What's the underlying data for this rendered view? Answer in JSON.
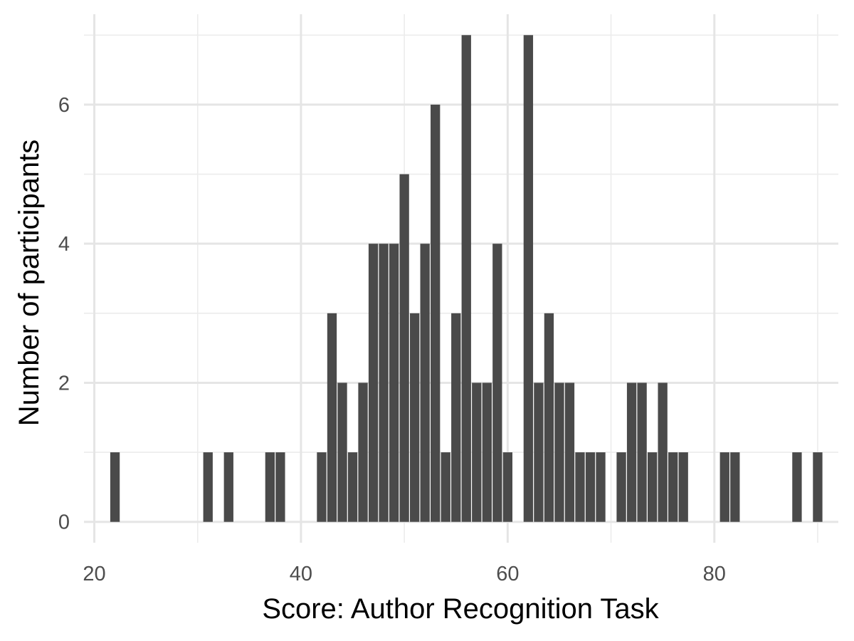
{
  "chart_data": {
    "type": "bar",
    "subtype": "histogram",
    "title": "",
    "xlabel": "Score: Author Recognition Task",
    "ylabel": "Number of participants",
    "xlim": [
      19,
      92
    ],
    "ylim": [
      -0.3,
      7.3
    ],
    "x_ticks": [
      20,
      40,
      60,
      80
    ],
    "y_ticks": [
      0,
      2,
      4,
      6
    ],
    "x_minor_ticks": [
      30,
      50,
      70,
      90
    ],
    "y_minor_ticks": [
      1,
      3,
      5,
      7
    ],
    "bin_width": 1,
    "grid": true,
    "legend": "none",
    "bar_color": "#4a4a4a",
    "grid_color": "#e5e5e5",
    "x": [
      22,
      31,
      33,
      37,
      38,
      42,
      43,
      44,
      45,
      46,
      47,
      48,
      49,
      50,
      51,
      52,
      53,
      54,
      55,
      56,
      57,
      58,
      59,
      60,
      62,
      63,
      64,
      65,
      66,
      67,
      68,
      69,
      71,
      72,
      73,
      74,
      75,
      76,
      77,
      81,
      82,
      88,
      90
    ],
    "values": [
      1,
      1,
      1,
      1,
      1,
      1,
      3,
      2,
      1,
      2,
      4,
      4,
      4,
      5,
      3,
      4,
      6,
      1,
      3,
      7,
      2,
      2,
      4,
      1,
      7,
      2,
      3,
      2,
      2,
      1,
      1,
      1,
      1,
      2,
      2,
      1,
      2,
      1,
      1,
      1,
      1,
      1,
      1
    ]
  }
}
